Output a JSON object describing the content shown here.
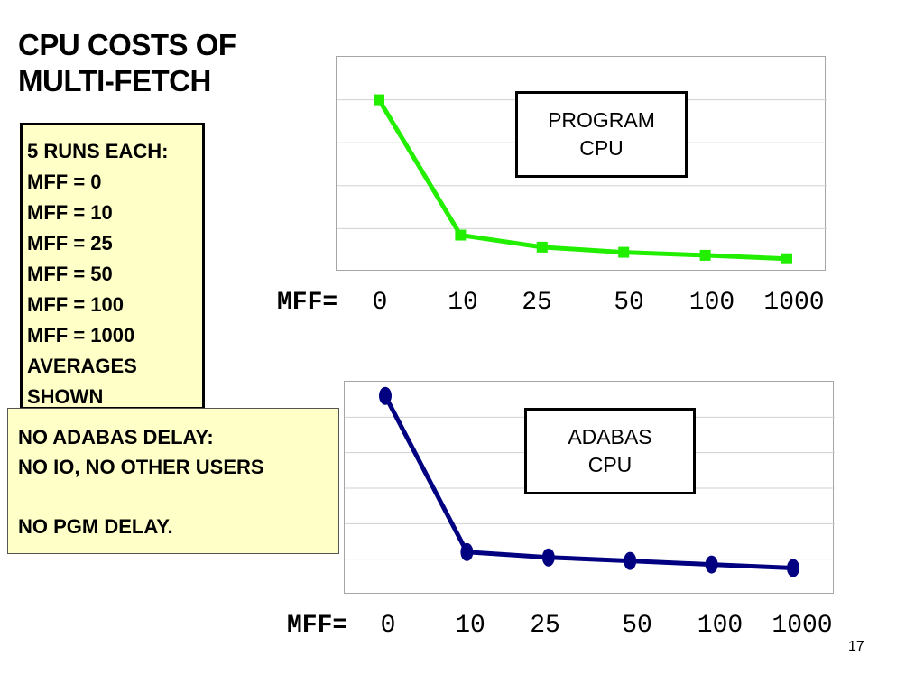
{
  "title": [
    "CPU COSTS OF",
    "MULTI-FETCH"
  ],
  "notes": [
    "5 RUNS EACH:",
    "MFF = 0",
    "MFF = 10",
    "MFF = 25",
    "MFF = 50",
    "MFF = 100",
    "MFF = 1000",
    "AVERAGES",
    "SHOWN"
  ],
  "delay_notes": [
    "NO ADABAS DELAY:",
    "NO IO, NO OTHER USERS",
    "",
    "NO PGM DELAY."
  ],
  "page_number": "17",
  "colors": {
    "program_line": "#22ee00",
    "adabas_line": "#000080",
    "notes_bg": "#ffffc8",
    "grid": "#d0d0d0"
  },
  "chart_data": [
    {
      "type": "line",
      "title": "PROGRAM CPU",
      "label_lines": [
        "PROGRAM",
        "CPU"
      ],
      "xlabel": "MFF=",
      "categories": [
        "0",
        "10",
        "25",
        "50",
        "100",
        "1000"
      ],
      "series": [
        {
          "name": "PROGRAM CPU",
          "values": [
            4.0,
            0.85,
            0.57,
            0.45,
            0.38,
            0.3
          ]
        }
      ],
      "ylim": [
        0,
        5
      ],
      "grid": true,
      "marker": "square"
    },
    {
      "type": "line",
      "title": "ADABAS CPU",
      "label_lines": [
        "ADABAS",
        "CPU"
      ],
      "xlabel": "MFF=",
      "categories": [
        "0",
        "10",
        "25",
        "50",
        "100",
        "1000"
      ],
      "series": [
        {
          "name": "ADABAS CPU",
          "values": [
            5.6,
            1.2,
            1.05,
            0.95,
            0.85,
            0.75
          ]
        }
      ],
      "ylim": [
        0,
        6
      ],
      "grid": true,
      "marker": "circle"
    }
  ]
}
